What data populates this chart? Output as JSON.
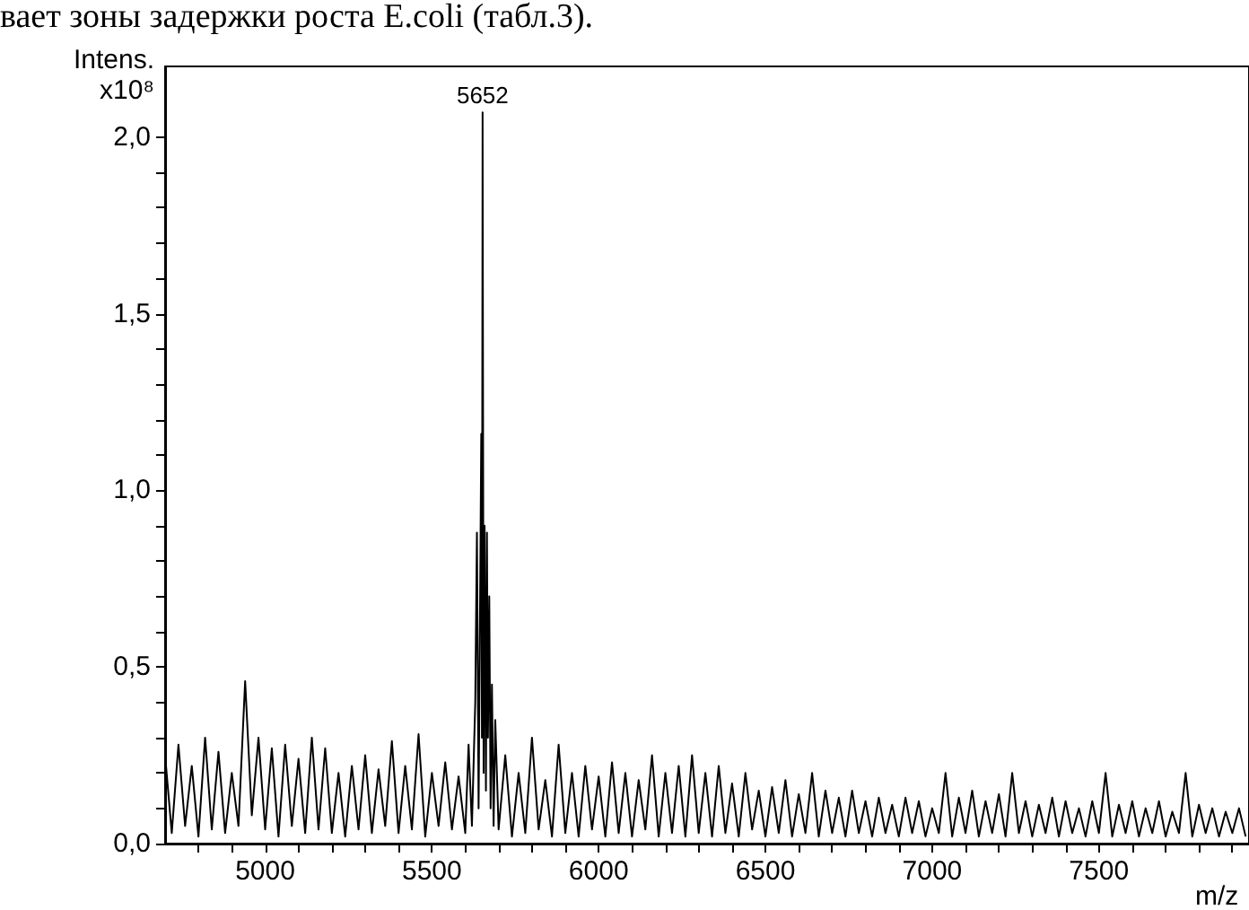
{
  "chart_data": {
    "type": "line",
    "xlabel": "m/z",
    "ylabel": "Intens.\nx10⁸",
    "annotations": [
      "вает зоны задержки роста E.coli (табл.3).",
      {
        "text": "5652",
        "x": 5652,
        "y": 2.07
      }
    ],
    "xlim": [
      4700,
      7950
    ],
    "ylim": [
      0,
      2.2
    ],
    "xticks": [
      {
        "value": 4800,
        "label": null
      },
      {
        "value": 4900,
        "label": null
      },
      5000,
      {
        "value": 5100,
        "label": null
      },
      {
        "value": 5200,
        "label": null
      },
      {
        "value": 5300,
        "label": null
      },
      {
        "value": 5400,
        "label": null
      },
      5500,
      {
        "value": 5600,
        "label": null
      },
      {
        "value": 5700,
        "label": null
      },
      {
        "value": 5800,
        "label": null
      },
      {
        "value": 5900,
        "label": null
      },
      6000,
      {
        "value": 6100,
        "label": null
      },
      {
        "value": 6200,
        "label": null
      },
      {
        "value": 6300,
        "label": null
      },
      {
        "value": 6400,
        "label": null
      },
      6500,
      {
        "value": 6600,
        "label": null
      },
      {
        "value": 6700,
        "label": null
      },
      {
        "value": 6800,
        "label": null
      },
      {
        "value": 6900,
        "label": null
      },
      7000,
      {
        "value": 7100,
        "label": null
      },
      {
        "value": 7200,
        "label": null
      },
      {
        "value": 7300,
        "label": null
      },
      {
        "value": 7400,
        "label": null
      },
      7500,
      {
        "value": 7600,
        "label": null
      },
      {
        "value": 7700,
        "label": null
      },
      {
        "value": 7800,
        "label": null
      },
      {
        "value": 7900,
        "label": null
      }
    ],
    "yticks": [
      {
        "value": 0,
        "label": "0,0"
      },
      {
        "value": 0.1,
        "label": null
      },
      {
        "value": 0.2,
        "label": null
      },
      {
        "value": 0.3,
        "label": null
      },
      {
        "value": 0.4,
        "label": null
      },
      {
        "value": 0.5,
        "label": "0,5"
      },
      {
        "value": 0.6,
        "label": null
      },
      {
        "value": 0.7,
        "label": null
      },
      {
        "value": 0.8,
        "label": null
      },
      {
        "value": 0.9,
        "label": null
      },
      {
        "value": 1,
        "label": "1,0"
      },
      {
        "value": 1.1,
        "label": null
      },
      {
        "value": 1.2,
        "label": null
      },
      {
        "value": 1.3,
        "label": null
      },
      {
        "value": 1.4,
        "label": null
      },
      {
        "value": 1.5,
        "label": "1,5"
      },
      {
        "value": 1.6,
        "label": null
      },
      {
        "value": 1.7,
        "label": null
      },
      {
        "value": 1.8,
        "label": null
      },
      {
        "value": 1.9,
        "label": null
      },
      {
        "value": 2,
        "label": "2,0"
      }
    ],
    "grid": false,
    "marker": "none",
    "line_style": "solid",
    "series": [
      {
        "color": "#000000",
        "x": [
          4700,
          4720,
          4740,
          4760,
          4780,
          4800,
          4820,
          4840,
          4860,
          4880,
          4900,
          4920,
          4940,
          4960,
          4980,
          5000,
          5020,
          5040,
          5060,
          5080,
          5100,
          5120,
          5140,
          5160,
          5180,
          5200,
          5220,
          5240,
          5260,
          5280,
          5300,
          5320,
          5340,
          5360,
          5380,
          5400,
          5420,
          5440,
          5460,
          5480,
          5500,
          5520,
          5540,
          5560,
          5580,
          5600,
          5610,
          5620,
          5630,
          5635,
          5640,
          5645,
          5648,
          5650,
          5652,
          5655,
          5658,
          5662,
          5665,
          5668,
          5672,
          5676,
          5680,
          5685,
          5690,
          5700,
          5720,
          5740,
          5760,
          5780,
          5800,
          5820,
          5840,
          5860,
          5880,
          5900,
          5920,
          5940,
          5960,
          5980,
          6000,
          6020,
          6040,
          6060,
          6080,
          6100,
          6120,
          6140,
          6160,
          6180,
          6200,
          6220,
          6240,
          6260,
          6280,
          6300,
          6320,
          6340,
          6360,
          6380,
          6400,
          6420,
          6440,
          6460,
          6480,
          6500,
          6520,
          6540,
          6560,
          6580,
          6600,
          6620,
          6640,
          6660,
          6680,
          6700,
          6720,
          6740,
          6760,
          6780,
          6800,
          6820,
          6840,
          6860,
          6880,
          6900,
          6920,
          6940,
          6960,
          6980,
          7000,
          7020,
          7040,
          7060,
          7080,
          7100,
          7120,
          7140,
          7160,
          7180,
          7200,
          7220,
          7240,
          7260,
          7280,
          7300,
          7320,
          7340,
          7360,
          7380,
          7400,
          7420,
          7440,
          7460,
          7480,
          7500,
          7520,
          7540,
          7560,
          7580,
          7600,
          7620,
          7640,
          7660,
          7680,
          7700,
          7720,
          7740,
          7760,
          7780,
          7800,
          7820,
          7840,
          7860,
          7880,
          7900,
          7920,
          7940
        ],
        "values": [
          0.25,
          0.03,
          0.28,
          0.05,
          0.22,
          0.02,
          0.3,
          0.04,
          0.26,
          0.03,
          0.2,
          0.05,
          0.46,
          0.08,
          0.3,
          0.04,
          0.27,
          0.02,
          0.28,
          0.05,
          0.24,
          0.03,
          0.3,
          0.04,
          0.27,
          0.03,
          0.2,
          0.02,
          0.22,
          0.04,
          0.25,
          0.03,
          0.21,
          0.05,
          0.29,
          0.03,
          0.22,
          0.04,
          0.31,
          0.02,
          0.2,
          0.05,
          0.23,
          0.04,
          0.19,
          0.03,
          0.28,
          0.05,
          0.4,
          0.88,
          0.1,
          0.75,
          1.16,
          0.3,
          2.07,
          0.2,
          0.9,
          0.15,
          0.88,
          0.3,
          0.7,
          0.1,
          0.45,
          0.05,
          0.35,
          0.04,
          0.25,
          0.02,
          0.2,
          0.03,
          0.3,
          0.04,
          0.18,
          0.02,
          0.28,
          0.03,
          0.2,
          0.02,
          0.22,
          0.04,
          0.19,
          0.02,
          0.23,
          0.03,
          0.2,
          0.02,
          0.18,
          0.04,
          0.25,
          0.02,
          0.2,
          0.03,
          0.22,
          0.02,
          0.25,
          0.03,
          0.2,
          0.02,
          0.22,
          0.03,
          0.17,
          0.02,
          0.2,
          0.04,
          0.15,
          0.02,
          0.16,
          0.03,
          0.18,
          0.02,
          0.14,
          0.03,
          0.2,
          0.02,
          0.15,
          0.03,
          0.13,
          0.02,
          0.15,
          0.03,
          0.12,
          0.02,
          0.13,
          0.03,
          0.11,
          0.02,
          0.13,
          0.03,
          0.12,
          0.02,
          0.1,
          0.03,
          0.2,
          0.02,
          0.13,
          0.03,
          0.15,
          0.02,
          0.12,
          0.03,
          0.14,
          0.02,
          0.2,
          0.03,
          0.12,
          0.02,
          0.11,
          0.03,
          0.13,
          0.02,
          0.12,
          0.03,
          0.1,
          0.02,
          0.12,
          0.03,
          0.2,
          0.02,
          0.11,
          0.03,
          0.12,
          0.02,
          0.1,
          0.03,
          0.12,
          0.02,
          0.09,
          0.03,
          0.2,
          0.02,
          0.11,
          0.03,
          0.1,
          0.02,
          0.09,
          0.03,
          0.1,
          0.02
        ]
      }
    ]
  }
}
